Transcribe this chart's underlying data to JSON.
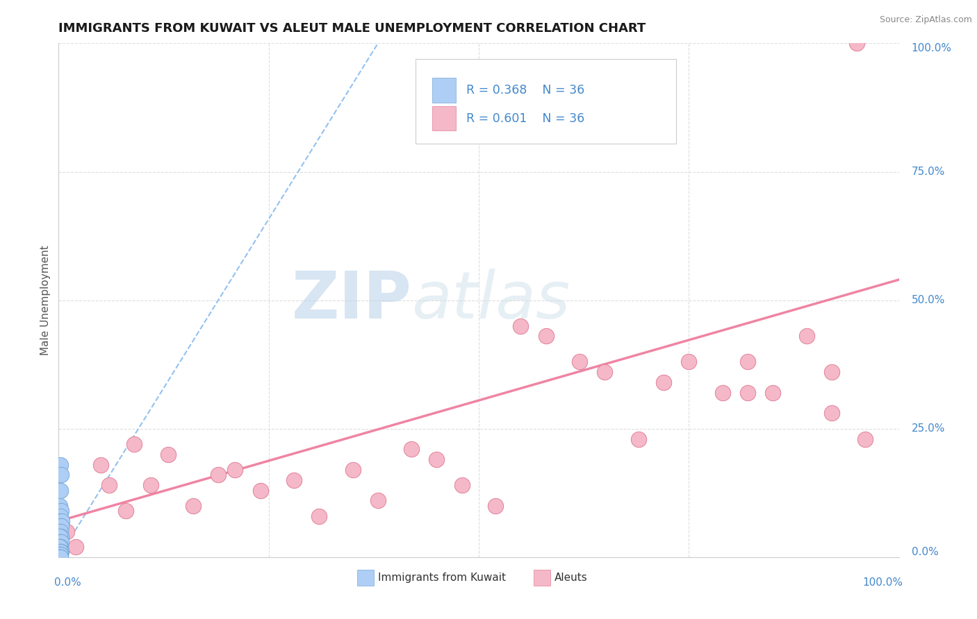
{
  "title": "IMMIGRANTS FROM KUWAIT VS ALEUT MALE UNEMPLOYMENT CORRELATION CHART",
  "source": "Source: ZipAtlas.com",
  "ylabel": "Male Unemployment",
  "watermark_zip": "ZIP",
  "watermark_atlas": "atlas",
  "legend_entries": [
    {
      "label": "Immigrants from Kuwait",
      "color": "#aecef5",
      "edge": "#7aaad8",
      "R": 0.368,
      "N": 36
    },
    {
      "label": "Aleuts",
      "color": "#f5b8c8",
      "edge": "#e08098",
      "R": 0.601,
      "N": 36
    }
  ],
  "kuwait_x": [
    0.002,
    0.003,
    0.002,
    0.001,
    0.003,
    0.002,
    0.001,
    0.004,
    0.002,
    0.003,
    0.001,
    0.002,
    0.003,
    0.001,
    0.002,
    0.001,
    0.003,
    0.002,
    0.001,
    0.002,
    0.001,
    0.002,
    0.001,
    0.003,
    0.001,
    0.002,
    0.001,
    0.002,
    0.001,
    0.002,
    0.001,
    0.002,
    0.001,
    0.002,
    0.001,
    0.002
  ],
  "kuwait_y": [
    0.18,
    0.16,
    0.13,
    0.1,
    0.09,
    0.08,
    0.07,
    0.07,
    0.06,
    0.06,
    0.05,
    0.05,
    0.04,
    0.04,
    0.03,
    0.03,
    0.03,
    0.02,
    0.02,
    0.02,
    0.02,
    0.01,
    0.01,
    0.01,
    0.01,
    0.01,
    0.005,
    0.005,
    0.005,
    0.005,
    0.0,
    0.0,
    0.0,
    0.0,
    0.0,
    0.0
  ],
  "aleut_x": [
    0.01,
    0.02,
    0.05,
    0.06,
    0.08,
    0.09,
    0.11,
    0.13,
    0.16,
    0.19,
    0.21,
    0.24,
    0.28,
    0.31,
    0.35,
    0.38,
    0.42,
    0.45,
    0.48,
    0.52,
    0.55,
    0.58,
    0.62,
    0.65,
    0.69,
    0.72,
    0.75,
    0.79,
    0.82,
    0.85,
    0.89,
    0.92,
    0.95,
    0.96,
    0.92,
    0.82
  ],
  "aleut_y": [
    0.05,
    0.02,
    0.18,
    0.14,
    0.09,
    0.22,
    0.14,
    0.2,
    0.1,
    0.16,
    0.17,
    0.13,
    0.15,
    0.08,
    0.17,
    0.11,
    0.21,
    0.19,
    0.14,
    0.1,
    0.45,
    0.43,
    0.38,
    0.36,
    0.23,
    0.34,
    0.38,
    0.32,
    0.38,
    0.32,
    0.43,
    0.36,
    1.0,
    0.23,
    0.28,
    0.32
  ],
  "kuwait_line": {
    "x0": 0.0,
    "x1": 0.38,
    "y0": 0.0,
    "y1": 1.0
  },
  "aleut_line": {
    "x0": 0.0,
    "x1": 1.0,
    "y0": 0.07,
    "y1": 0.54
  },
  "title_color": "#1a1a1a",
  "title_fontsize": 13,
  "axis_color": "#4488cc",
  "grid_color": "#dddddd",
  "kuwait_dot_color": "#aecef5",
  "kuwait_dot_edge": "#7aaad8",
  "aleut_dot_color": "#f5b8c8",
  "aleut_dot_edge": "#e08098",
  "kuwait_line_color": "#88bbee",
  "aleut_line_color": "#ee7799",
  "watermark_color": "#c8ddf0",
  "xlim": [
    0.0,
    1.0
  ],
  "ylim": [
    0.0,
    1.0
  ],
  "yticks": [
    0.0,
    0.25,
    0.5,
    0.75,
    1.0
  ],
  "ytick_labels": [
    "0.0%",
    "25.0%",
    "50.0%",
    "75.0%",
    "100.0%"
  ]
}
